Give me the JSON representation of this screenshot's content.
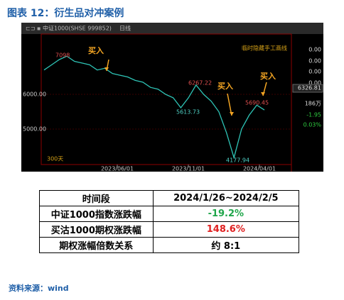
{
  "header": {
    "title": "图表 12：衍生品对冲案例"
  },
  "chart": {
    "toolbar": "中证1000(SHSE 999852)",
    "period": "日线",
    "hide_lines": "临时隐藏手工画线",
    "period_days": "300天",
    "yticks": [
      {
        "value": 6000,
        "label": "6000.00"
      },
      {
        "value": 5000,
        "label": "5000.00"
      }
    ],
    "ylim": [
      3980,
      7735
    ],
    "xlabels": [
      "2023/06/01",
      "2023/11/01",
      "2024/04/01"
    ],
    "price_labels": [
      "7098",
      "6267.22",
      "5613.73",
      "4177.94",
      "5690.45"
    ],
    "buy_labels": [
      "买入",
      "买入",
      "买入"
    ],
    "side_panel": [
      "0.00",
      "0.00",
      "0.00",
      "0.00",
      "6326.81",
      "186万",
      "-1.95",
      "0.03%"
    ],
    "prices": [
      6700,
      6850,
      7000,
      7098,
      6950,
      6900,
      6850,
      6700,
      6750,
      6600,
      6550,
      6500,
      6400,
      6350,
      6200,
      6150,
      6000,
      5900,
      5613.73,
      5900,
      6267.22,
      6000,
      5800,
      5500,
      4900,
      4177.94,
      5000,
      5400,
      5690.45,
      5550
    ]
  },
  "table": {
    "rows": [
      [
        "时间段",
        "2024/1/26~2024/2/5"
      ],
      [
        "中证1000指数涨跌幅",
        "-19.2%"
      ],
      [
        "买沽1000期权涨跌幅",
        "148.6%"
      ],
      [
        "期权涨幅倍数关系",
        "约 8:1"
      ]
    ]
  },
  "source": "资料来源：wind"
}
